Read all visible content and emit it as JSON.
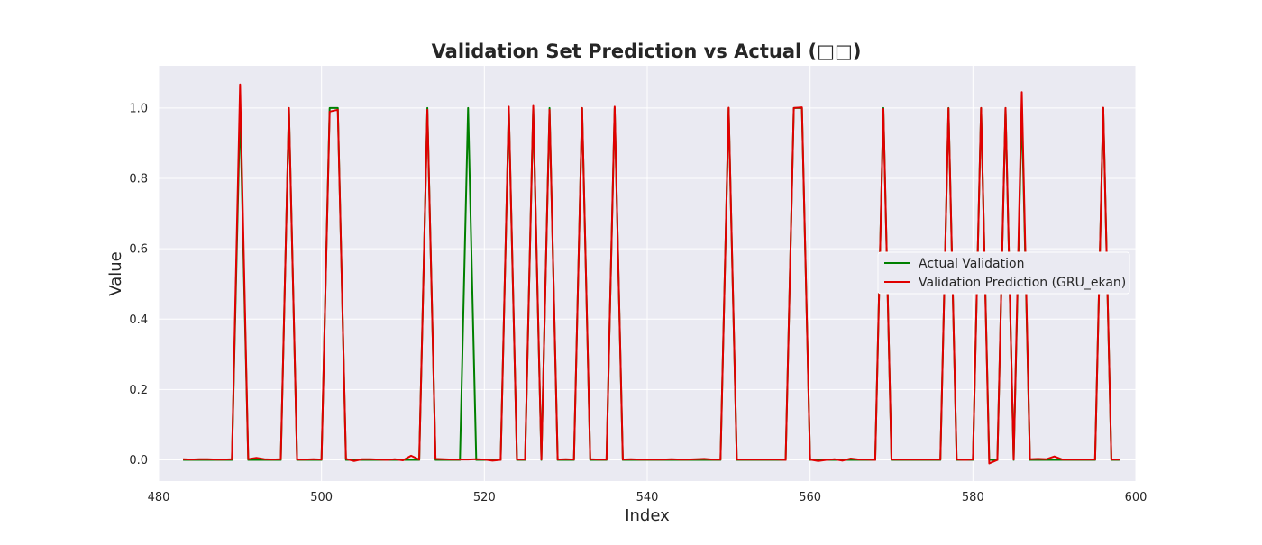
{
  "chart_data": {
    "type": "line",
    "title": "Validation Set Prediction vs Actual (□□)",
    "xlabel": "Index",
    "ylabel": "Value",
    "xlim": [
      480,
      600
    ],
    "ylim": [
      -0.06,
      1.12
    ],
    "xticks": [
      480,
      500,
      520,
      540,
      560,
      580,
      600
    ],
    "yticks": [
      0.0,
      0.2,
      0.4,
      0.6,
      0.8,
      1.0
    ],
    "xtick_labels": [
      "480",
      "500",
      "520",
      "540",
      "560",
      "580",
      "600"
    ],
    "ytick_labels": [
      "0.0",
      "0.2",
      "0.4",
      "0.6",
      "0.8",
      "1.0"
    ],
    "grid": true,
    "legend_position": "center-right",
    "background_color": "#eaeaf2",
    "x": [
      483,
      484,
      485,
      486,
      487,
      488,
      489,
      490,
      491,
      492,
      493,
      494,
      495,
      496,
      497,
      498,
      499,
      500,
      501,
      502,
      503,
      504,
      505,
      506,
      507,
      508,
      509,
      510,
      511,
      512,
      513,
      514,
      515,
      516,
      517,
      518,
      519,
      520,
      521,
      522,
      523,
      524,
      525,
      526,
      527,
      528,
      529,
      530,
      531,
      532,
      533,
      534,
      535,
      536,
      537,
      538,
      539,
      540,
      541,
      542,
      543,
      544,
      545,
      546,
      547,
      548,
      549,
      550,
      551,
      552,
      553,
      554,
      555,
      556,
      557,
      558,
      559,
      560,
      561,
      562,
      563,
      564,
      565,
      566,
      567,
      568,
      569,
      570,
      571,
      572,
      573,
      574,
      575,
      576,
      577,
      578,
      579,
      580,
      581,
      582,
      583,
      584,
      585,
      586,
      587,
      588,
      589,
      590,
      591,
      592,
      593,
      594,
      595,
      596,
      597,
      598
    ],
    "series": [
      {
        "name": "Actual Validation",
        "color": "#008000",
        "values": [
          0,
          0,
          0,
          0,
          0,
          0,
          0,
          1,
          0,
          0,
          0,
          0,
          0,
          1,
          0,
          0,
          0,
          0,
          1,
          1,
          0,
          0,
          0,
          0,
          0,
          0,
          0,
          0,
          0,
          0,
          1,
          0,
          0,
          0,
          0,
          1,
          0,
          0,
          0,
          0,
          1,
          0,
          0,
          1,
          0,
          1,
          0,
          0,
          0,
          1,
          0,
          0,
          0,
          1,
          0,
          0,
          0,
          0,
          0,
          0,
          0,
          0,
          0,
          0,
          0,
          0,
          0,
          1,
          0,
          0,
          0,
          0,
          0,
          0,
          0,
          1,
          1,
          0,
          0,
          0,
          0,
          0,
          0,
          0,
          0,
          0,
          1,
          0,
          0,
          0,
          0,
          0,
          0,
          0,
          1,
          0,
          0,
          0,
          1,
          0,
          0,
          1,
          0,
          1,
          0,
          0,
          0,
          0,
          0,
          0,
          0,
          0,
          0,
          1,
          0,
          0
        ]
      },
      {
        "name": "Validation Prediction (GRU_ekan)",
        "color": "#e00000",
        "values": [
          0.002,
          0.001,
          0.002,
          0.002,
          0.001,
          0.001,
          0.002,
          1.067,
          0.002,
          0.006,
          0.002,
          0.001,
          0.002,
          1.0,
          0.001,
          0.001,
          0.002,
          0.001,
          0.99,
          0.995,
          0.003,
          -0.003,
          0.002,
          0.002,
          0.001,
          0.0,
          0.002,
          -0.001,
          0.012,
          0.001,
          0.995,
          0.003,
          0.002,
          0.001,
          0.001,
          0.001,
          0.002,
          0.001,
          -0.002,
          0.0,
          1.004,
          0.001,
          0.001,
          1.006,
          0.001,
          0.995,
          0.001,
          0.002,
          0.001,
          1.0,
          0.002,
          0.001,
          0.001,
          1.004,
          0.001,
          0.002,
          0.001,
          0.001,
          0.001,
          0.001,
          0.002,
          0.001,
          0.001,
          0.002,
          0.003,
          0.001,
          0.001,
          1.001,
          0.001,
          0.001,
          0.001,
          0.001,
          0.001,
          0.001,
          0.0,
          1.0,
          1.002,
          0.001,
          -0.003,
          0.0,
          0.002,
          -0.002,
          0.004,
          0.001,
          0.001,
          0.0,
          0.997,
          0.001,
          0.001,
          0.001,
          0.001,
          0.001,
          0.001,
          0.001,
          0.999,
          0.001,
          0.0,
          0.001,
          1.0,
          -0.01,
          0.0,
          1.0,
          0.001,
          1.045,
          0.002,
          0.003,
          0.002,
          0.01,
          0.001,
          0.001,
          0.001,
          0.001,
          0.001,
          1.001,
          0.001,
          0.001
        ]
      }
    ]
  }
}
